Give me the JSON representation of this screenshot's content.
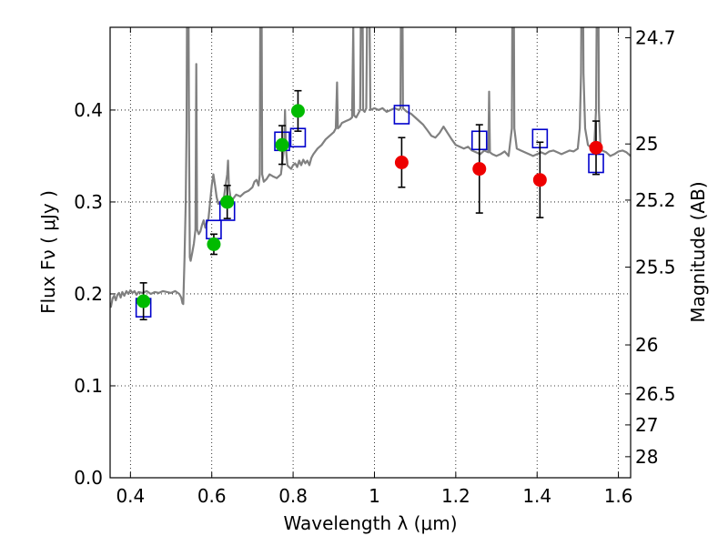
{
  "chart_data": {
    "type": "scatter",
    "xlabel": "Wavelength  λ (μm)",
    "ylabel": "Flux  Fν ( μJy )",
    "y2label": "Magnitude (AB)",
    "xlim": [
      0.35,
      1.63
    ],
    "ylim": [
      0.0,
      0.49
    ],
    "grid": true,
    "grid_style": "dotted",
    "x_ticks": [
      0.4,
      0.6,
      0.8,
      1.0,
      1.2,
      1.4,
      1.6
    ],
    "x_tick_labels": [
      "0.4",
      "0.6",
      "0.8",
      "1",
      "1.2",
      "1.4",
      "1.6"
    ],
    "y_ticks": [
      0.0,
      0.1,
      0.2,
      0.3,
      0.4
    ],
    "y_tick_labels": [
      "0.0",
      "0.1",
      "0.2",
      "0.3",
      "0.4"
    ],
    "y2_ticks": [
      {
        "label": "24.7",
        "flux": 0.4786
      },
      {
        "label": "25",
        "flux": 0.3631
      },
      {
        "label": "25.2",
        "flux": 0.302
      },
      {
        "label": "25.5",
        "flux": 0.2291
      },
      {
        "label": "26",
        "flux": 0.1445
      },
      {
        "label": "26.5",
        "flux": 0.0912
      },
      {
        "label": "27",
        "flux": 0.0575
      },
      {
        "label": "28",
        "flux": 0.0229
      }
    ],
    "colors": {
      "model": "#808080",
      "optical": "#00bb00",
      "nir": "#ee0000",
      "synthetic": "#0000cc",
      "errorbar": "#000000"
    },
    "series": [
      {
        "kind": "line",
        "role": "model-spectrum",
        "points": [
          [
            0.35,
            0.19
          ],
          [
            0.352,
            0.186
          ],
          [
            0.356,
            0.195
          ],
          [
            0.36,
            0.198
          ],
          [
            0.364,
            0.193
          ],
          [
            0.368,
            0.199
          ],
          [
            0.372,
            0.201
          ],
          [
            0.376,
            0.196
          ],
          [
            0.38,
            0.202
          ],
          [
            0.385,
            0.198
          ],
          [
            0.39,
            0.203
          ],
          [
            0.395,
            0.2
          ],
          [
            0.4,
            0.204
          ],
          [
            0.405,
            0.201
          ],
          [
            0.41,
            0.203
          ],
          [
            0.415,
            0.199
          ],
          [
            0.42,
            0.202
          ],
          [
            0.43,
            0.201
          ],
          [
            0.44,
            0.203
          ],
          [
            0.45,
            0.2
          ],
          [
            0.46,
            0.202
          ],
          [
            0.47,
            0.201
          ],
          [
            0.48,
            0.203
          ],
          [
            0.49,
            0.202
          ],
          [
            0.5,
            0.201
          ],
          [
            0.51,
            0.203
          ],
          [
            0.52,
            0.2
          ],
          [
            0.525,
            0.196
          ],
          [
            0.528,
            0.19
          ],
          [
            0.53,
            0.189
          ],
          [
            0.533,
            0.24
          ],
          [
            0.536,
            0.3
          ],
          [
            0.538,
            0.38
          ],
          [
            0.54,
            0.6
          ],
          [
            0.542,
            0.6
          ],
          [
            0.544,
            0.38
          ],
          [
            0.546,
            0.24
          ],
          [
            0.548,
            0.236
          ],
          [
            0.552,
            0.245
          ],
          [
            0.556,
            0.255
          ],
          [
            0.56,
            0.27
          ],
          [
            0.562,
            0.45
          ],
          [
            0.564,
            0.27
          ],
          [
            0.568,
            0.265
          ],
          [
            0.572,
            0.268
          ],
          [
            0.576,
            0.275
          ],
          [
            0.58,
            0.28
          ],
          [
            0.584,
            0.272
          ],
          [
            0.588,
            0.278
          ],
          [
            0.592,
            0.282
          ],
          [
            0.596,
            0.3
          ],
          [
            0.6,
            0.318
          ],
          [
            0.604,
            0.33
          ],
          [
            0.608,
            0.318
          ],
          [
            0.612,
            0.305
          ],
          [
            0.616,
            0.298
          ],
          [
            0.62,
            0.3
          ],
          [
            0.625,
            0.302
          ],
          [
            0.63,
            0.305
          ],
          [
            0.634,
            0.318
          ],
          [
            0.638,
            0.33
          ],
          [
            0.64,
            0.345
          ],
          [
            0.642,
            0.318
          ],
          [
            0.646,
            0.305
          ],
          [
            0.65,
            0.302
          ],
          [
            0.66,
            0.308
          ],
          [
            0.67,
            0.306
          ],
          [
            0.68,
            0.31
          ],
          [
            0.69,
            0.312
          ],
          [
            0.7,
            0.316
          ],
          [
            0.705,
            0.322
          ],
          [
            0.71,
            0.324
          ],
          [
            0.715,
            0.318
          ],
          [
            0.718,
            0.33
          ],
          [
            0.72,
            0.6
          ],
          [
            0.722,
            0.6
          ],
          [
            0.724,
            0.33
          ],
          [
            0.728,
            0.322
          ],
          [
            0.735,
            0.325
          ],
          [
            0.742,
            0.33
          ],
          [
            0.75,
            0.328
          ],
          [
            0.76,
            0.326
          ],
          [
            0.77,
            0.33
          ],
          [
            0.778,
            0.36
          ],
          [
            0.78,
            0.4
          ],
          [
            0.782,
            0.36
          ],
          [
            0.786,
            0.34
          ],
          [
            0.79,
            0.338
          ],
          [
            0.795,
            0.336
          ],
          [
            0.8,
            0.34
          ],
          [
            0.805,
            0.342
          ],
          [
            0.81,
            0.338
          ],
          [
            0.815,
            0.345
          ],
          [
            0.82,
            0.34
          ],
          [
            0.825,
            0.346
          ],
          [
            0.83,
            0.342
          ],
          [
            0.835,
            0.345
          ],
          [
            0.84,
            0.34
          ],
          [
            0.845,
            0.348
          ],
          [
            0.85,
            0.352
          ],
          [
            0.86,
            0.358
          ],
          [
            0.87,
            0.362
          ],
          [
            0.88,
            0.368
          ],
          [
            0.89,
            0.372
          ],
          [
            0.9,
            0.376
          ],
          [
            0.905,
            0.38
          ],
          [
            0.908,
            0.43
          ],
          [
            0.91,
            0.38
          ],
          [
            0.915,
            0.382
          ],
          [
            0.92,
            0.386
          ],
          [
            0.93,
            0.388
          ],
          [
            0.94,
            0.39
          ],
          [
            0.945,
            0.392
          ],
          [
            0.948,
            0.49
          ],
          [
            0.95,
            0.394
          ],
          [
            0.955,
            0.392
          ],
          [
            0.96,
            0.396
          ],
          [
            0.965,
            0.4
          ],
          [
            0.968,
            0.6
          ],
          [
            0.97,
            0.6
          ],
          [
            0.972,
            0.4
          ],
          [
            0.976,
            0.398
          ],
          [
            0.98,
            0.402
          ],
          [
            0.984,
            0.6
          ],
          [
            0.986,
            0.6
          ],
          [
            0.99,
            0.4
          ],
          [
            1.0,
            0.402
          ],
          [
            1.01,
            0.4
          ],
          [
            1.02,
            0.402
          ],
          [
            1.03,
            0.398
          ],
          [
            1.04,
            0.4
          ],
          [
            1.05,
            0.402
          ],
          [
            1.06,
            0.4
          ],
          [
            1.064,
            0.402
          ],
          [
            1.066,
            0.6
          ],
          [
            1.068,
            0.6
          ],
          [
            1.07,
            0.402
          ],
          [
            1.08,
            0.398
          ],
          [
            1.09,
            0.396
          ],
          [
            1.1,
            0.392
          ],
          [
            1.11,
            0.388
          ],
          [
            1.12,
            0.384
          ],
          [
            1.13,
            0.378
          ],
          [
            1.14,
            0.372
          ],
          [
            1.15,
            0.37
          ],
          [
            1.16,
            0.375
          ],
          [
            1.17,
            0.382
          ],
          [
            1.18,
            0.375
          ],
          [
            1.19,
            0.368
          ],
          [
            1.2,
            0.362
          ],
          [
            1.21,
            0.36
          ],
          [
            1.22,
            0.358
          ],
          [
            1.23,
            0.36
          ],
          [
            1.24,
            0.356
          ],
          [
            1.25,
            0.354
          ],
          [
            1.26,
            0.352
          ],
          [
            1.27,
            0.356
          ],
          [
            1.28,
            0.354
          ],
          [
            1.282,
            0.42
          ],
          [
            1.284,
            0.354
          ],
          [
            1.29,
            0.352
          ],
          [
            1.3,
            0.35
          ],
          [
            1.31,
            0.352
          ],
          [
            1.32,
            0.355
          ],
          [
            1.33,
            0.35
          ],
          [
            1.338,
            0.38
          ],
          [
            1.34,
            0.6
          ],
          [
            1.342,
            0.6
          ],
          [
            1.344,
            0.38
          ],
          [
            1.35,
            0.358
          ],
          [
            1.36,
            0.356
          ],
          [
            1.37,
            0.354
          ],
          [
            1.38,
            0.352
          ],
          [
            1.39,
            0.35
          ],
          [
            1.4,
            0.352
          ],
          [
            1.41,
            0.354
          ],
          [
            1.42,
            0.352
          ],
          [
            1.43,
            0.355
          ],
          [
            1.44,
            0.356
          ],
          [
            1.45,
            0.354
          ],
          [
            1.46,
            0.352
          ],
          [
            1.47,
            0.354
          ],
          [
            1.48,
            0.356
          ],
          [
            1.49,
            0.355
          ],
          [
            1.5,
            0.358
          ],
          [
            1.505,
            0.38
          ],
          [
            1.508,
            0.44
          ],
          [
            1.51,
            0.6
          ],
          [
            1.512,
            0.6
          ],
          [
            1.514,
            0.44
          ],
          [
            1.518,
            0.38
          ],
          [
            1.525,
            0.362
          ],
          [
            1.53,
            0.36
          ],
          [
            1.535,
            0.358
          ],
          [
            1.54,
            0.356
          ],
          [
            1.545,
            0.4
          ],
          [
            1.548,
            0.6
          ],
          [
            1.55,
            0.6
          ],
          [
            1.552,
            0.4
          ],
          [
            1.556,
            0.36
          ],
          [
            1.56,
            0.356
          ],
          [
            1.57,
            0.354
          ],
          [
            1.58,
            0.35
          ],
          [
            1.59,
            0.352
          ],
          [
            1.6,
            0.355
          ],
          [
            1.61,
            0.356
          ],
          [
            1.62,
            0.354
          ],
          [
            1.63,
            0.35
          ]
        ]
      },
      {
        "kind": "markers",
        "role": "synthetic-photometry",
        "marker": "open-square",
        "points": [
          [
            0.432,
            0.185
          ],
          [
            0.605,
            0.27
          ],
          [
            0.638,
            0.29
          ],
          [
            0.773,
            0.366
          ],
          [
            0.812,
            0.37
          ],
          [
            1.067,
            0.395
          ],
          [
            1.258,
            0.367
          ],
          [
            1.407,
            0.369
          ],
          [
            1.545,
            0.342
          ]
        ]
      },
      {
        "kind": "markers",
        "role": "optical-photometry",
        "marker": "filled-circle",
        "points": [
          {
            "x": 0.432,
            "y": 0.192,
            "err": 0.02
          },
          {
            "x": 0.605,
            "y": 0.254,
            "err": 0.011
          },
          {
            "x": 0.638,
            "y": 0.3,
            "err": 0.018
          },
          {
            "x": 0.773,
            "y": 0.362,
            "err": 0.021
          },
          {
            "x": 0.812,
            "y": 0.399,
            "err": 0.022
          }
        ]
      },
      {
        "kind": "markers",
        "role": "nir-photometry",
        "marker": "filled-circle",
        "points": [
          {
            "x": 1.067,
            "y": 0.343,
            "err": 0.027
          },
          {
            "x": 1.258,
            "y": 0.336,
            "err": 0.048
          },
          {
            "x": 1.407,
            "y": 0.324,
            "err": 0.041
          },
          {
            "x": 1.545,
            "y": 0.359,
            "err": 0.029
          }
        ]
      }
    ]
  }
}
